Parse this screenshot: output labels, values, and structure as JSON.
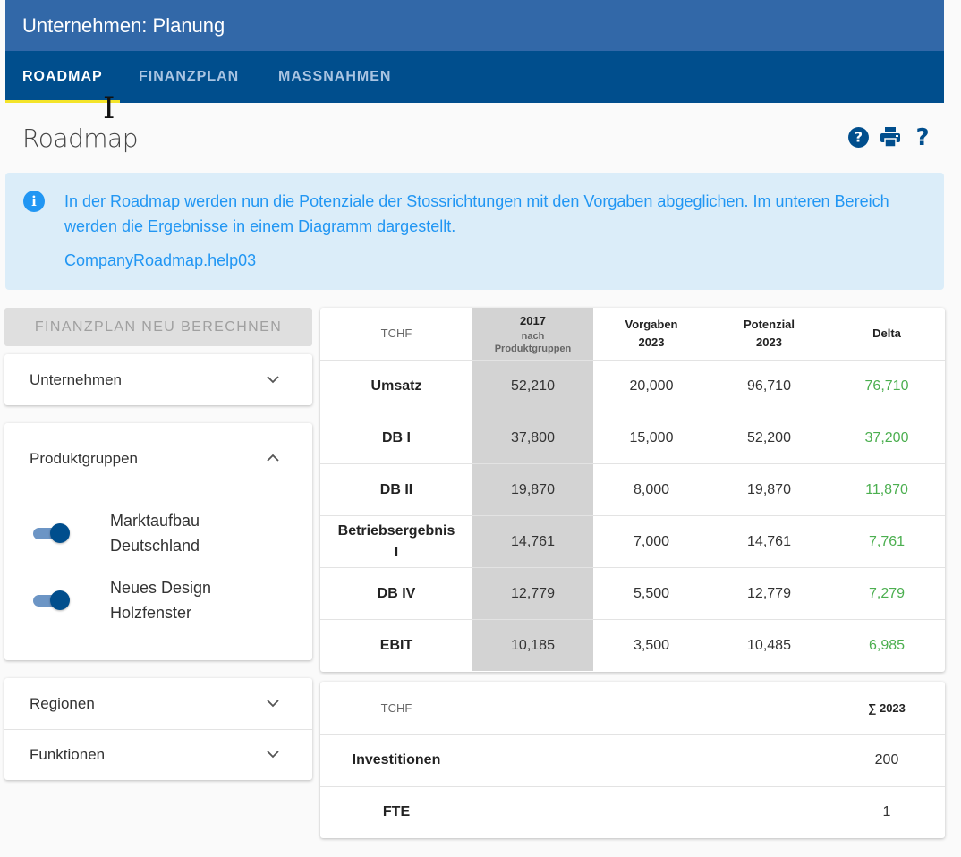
{
  "app": {
    "title": "Unternehmen: Planung"
  },
  "tabs": [
    {
      "label": "ROADMAP",
      "active": true
    },
    {
      "label": "FINANZPLAN",
      "active": false
    },
    {
      "label": "MASSNAHMEN",
      "active": false
    }
  ],
  "page": {
    "title": "Roadmap"
  },
  "toolbar": {
    "icons": [
      "help-circle-icon",
      "print-icon",
      "question-mark-icon"
    ]
  },
  "info": {
    "text": "In der Roadmap werden nun die Potenziale der Stossrichtungen mit den Vorgaben abgeglichen. Im unteren Bereich werden die Ergebnisse in einem Diagramm dargestellt.",
    "link": "CompanyRoadmap.help03"
  },
  "sidebar": {
    "recalc_button": "FINANZPLAN NEU BERECHNEN",
    "unternehmen": "Unternehmen",
    "produktgruppen": "Produktgruppen",
    "toggles": [
      {
        "line1": "Marktaufbau",
        "line2": "Deutschland",
        "on": true
      },
      {
        "line1": "Neues Design",
        "line2": "Holzfenster",
        "on": true
      }
    ],
    "regionen": "Regionen",
    "funktionen": "Funktionen"
  },
  "table1": {
    "headers": {
      "unit": "TCHF",
      "y2017": "2017",
      "y2017_sub1": "nach",
      "y2017_sub2": "Produktgruppen",
      "vorgaben1": "Vorgaben",
      "vorgaben2": "2023",
      "potenzial1": "Potenzial",
      "potenzial2": "2023",
      "delta": "Delta"
    },
    "rows": [
      {
        "label": "Umsatz",
        "y2017": "52,210",
        "vorgaben": "20,000",
        "potenzial": "96,710",
        "delta": "76,710"
      },
      {
        "label": "DB I",
        "y2017": "37,800",
        "vorgaben": "15,000",
        "potenzial": "52,200",
        "delta": "37,200"
      },
      {
        "label": "DB II",
        "y2017": "19,870",
        "vorgaben": "8,000",
        "potenzial": "19,870",
        "delta": "11,870"
      },
      {
        "label": "Betriebsergebnis",
        "label2": "I",
        "y2017": "14,761",
        "vorgaben": "7,000",
        "potenzial": "14,761",
        "delta": "7,761"
      },
      {
        "label": "DB IV",
        "y2017": "12,779",
        "vorgaben": "5,500",
        "potenzial": "12,779",
        "delta": "7,279"
      },
      {
        "label": "EBIT",
        "y2017": "10,185",
        "vorgaben": "3,500",
        "potenzial": "10,485",
        "delta": "6,985"
      }
    ]
  },
  "table2": {
    "unit": "TCHF",
    "sum_header": "∑ 2023",
    "rows": [
      {
        "label": "Investitionen",
        "value": "200"
      },
      {
        "label": "FTE",
        "value": "1"
      }
    ]
  },
  "colors": {
    "header": "#3268a8",
    "tabbar": "#004e8d",
    "indicator": "#f4e42a",
    "info_bg": "#dbedf9",
    "info_text": "#2196f3",
    "delta": "#4caf50"
  }
}
